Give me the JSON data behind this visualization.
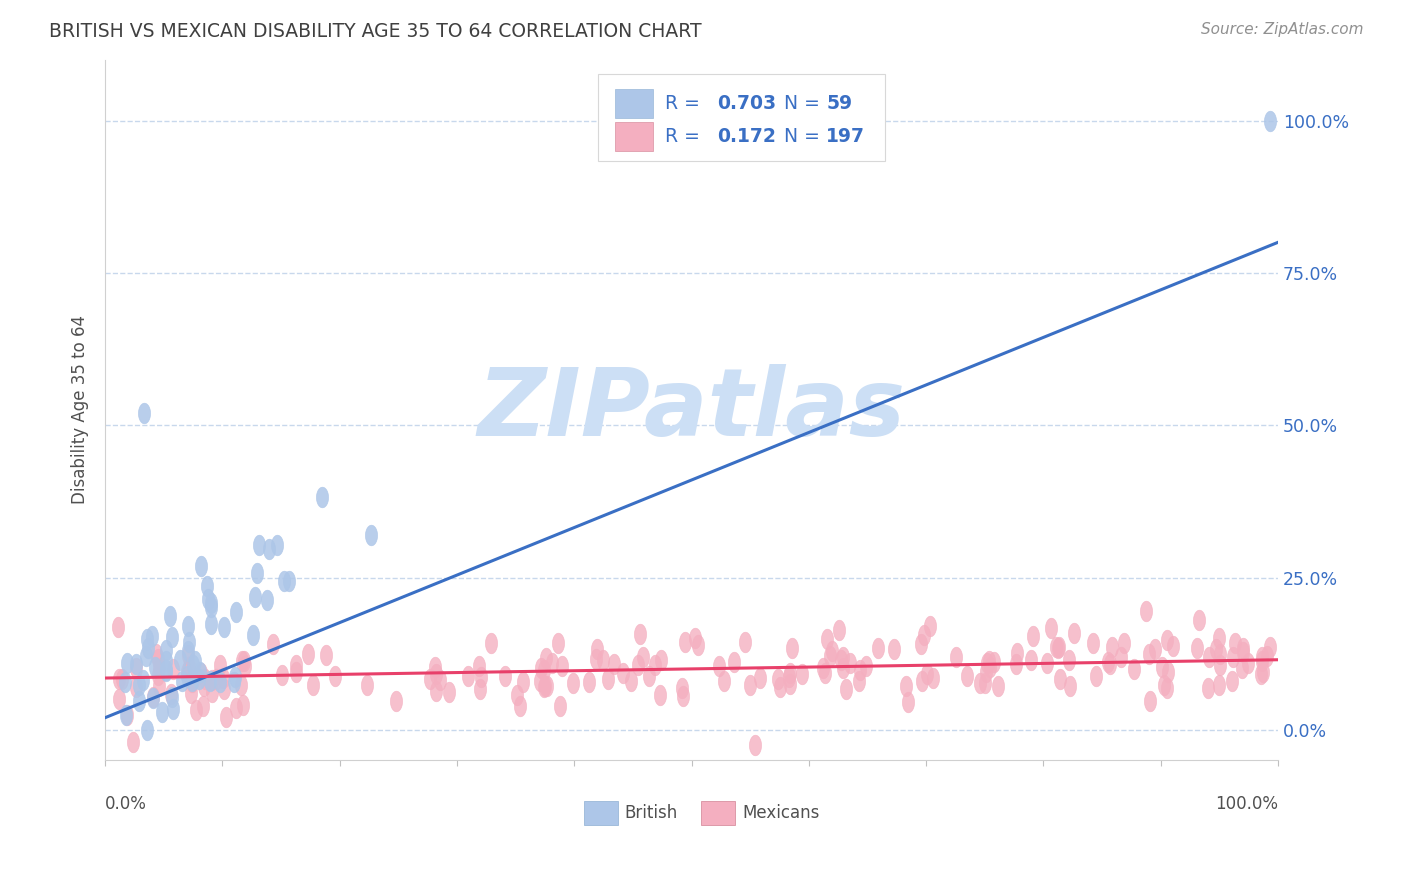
{
  "title": "BRITISH VS MEXICAN DISABILITY AGE 35 TO 64 CORRELATION CHART",
  "source": "Source: ZipAtlas.com",
  "ylabel": "Disability Age 35 to 64",
  "xlim": [
    0.0,
    1.0
  ],
  "ylim": [
    -0.05,
    1.1
  ],
  "british_R": 0.703,
  "british_N": 59,
  "mexican_R": 0.172,
  "mexican_N": 197,
  "british_color": "#adc6e8",
  "british_line_color": "#3a6fc4",
  "mexican_color": "#f4afc0",
  "mexican_line_color": "#e8406a",
  "watermark_text": "ZIPatlas",
  "watermark_color": "#ccdff5",
  "title_color": "#404040",
  "source_color": "#909090",
  "legend_text_color": "#3a6fc4",
  "ytick_values": [
    0.0,
    0.25,
    0.5,
    0.75,
    1.0
  ],
  "ytick_labels": [
    "0.0%",
    "25.0%",
    "50.0%",
    "75.0%",
    "100.0%"
  ],
  "grid_color": "#c8d8ec",
  "background_color": "#ffffff",
  "brit_line_y0": 0.02,
  "brit_line_y1": 0.8,
  "mex_line_y0": 0.085,
  "mex_line_y1": 0.115
}
